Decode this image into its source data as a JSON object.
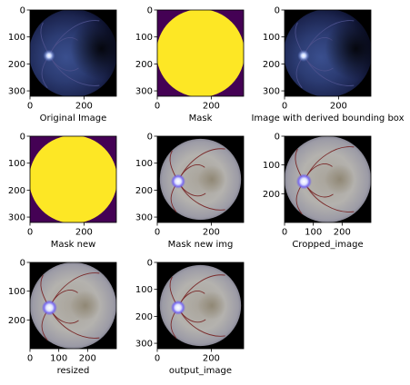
{
  "figure": {
    "panels": [
      {
        "label": "Original Image",
        "kind": "fundus-dark",
        "xticks": [
          "0",
          "200"
        ],
        "yticks": [
          "0",
          "100",
          "200",
          "300"
        ]
      },
      {
        "label": "Mask",
        "kind": "mask",
        "xticks": [
          "0",
          "200"
        ],
        "yticks": [
          "0",
          "100",
          "200",
          "300"
        ]
      },
      {
        "label": "Image with derived bounding box",
        "kind": "fundus-dark",
        "xticks": [
          "0",
          "200"
        ],
        "yticks": [
          "0",
          "100",
          "200",
          "300"
        ]
      },
      {
        "label": "Mask new",
        "kind": "mask",
        "xticks": [
          "0",
          "200"
        ],
        "yticks": [
          "0",
          "100",
          "200",
          "300"
        ]
      },
      {
        "label": "Mask new img",
        "kind": "fundus-enhanced",
        "xticks": [
          "0",
          "200"
        ],
        "yticks": [
          "0",
          "100",
          "200",
          "300"
        ]
      },
      {
        "label": "Cropped_image",
        "kind": "fundus-enhanced-cropped",
        "xticks": [
          "0",
          "100",
          "200"
        ],
        "yticks": [
          "0",
          "100",
          "200"
        ]
      },
      {
        "label": "resized",
        "kind": "fundus-enhanced-cropped",
        "xticks": [
          "0",
          "100",
          "200"
        ],
        "yticks": [
          "0",
          "100",
          "200"
        ]
      },
      {
        "label": "output_image",
        "kind": "fundus-enhanced",
        "xticks": [
          "0",
          "200"
        ],
        "yticks": [
          "0",
          "100",
          "200",
          "300"
        ]
      }
    ]
  },
  "colors": {
    "mask_background": "#440154",
    "mask_fill": "#fde725",
    "black": "#000000"
  }
}
